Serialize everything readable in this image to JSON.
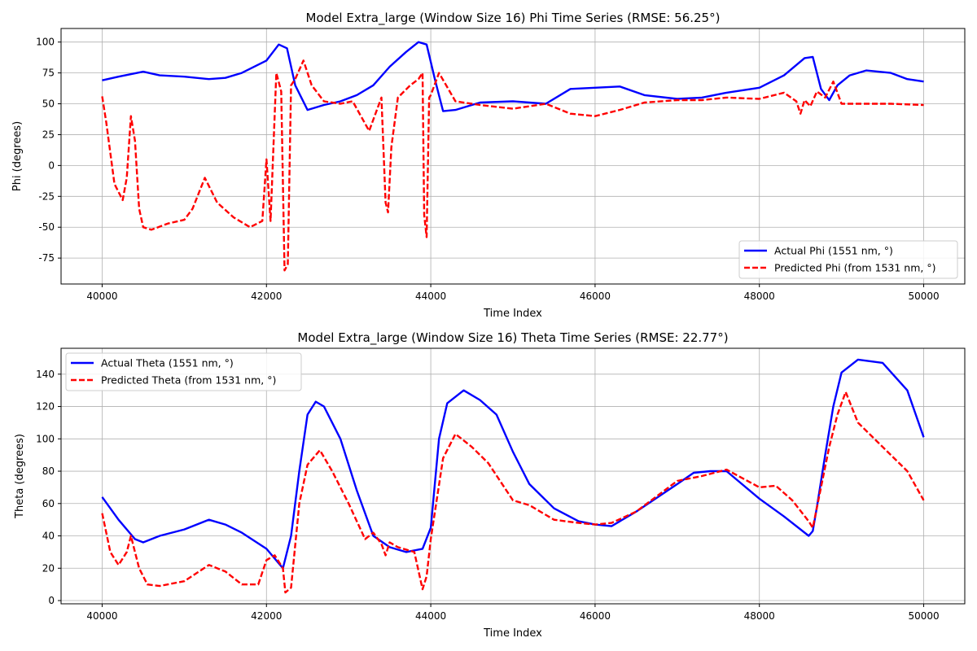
{
  "chart_data": [
    {
      "type": "line",
      "title": "Model Extra_large (Window Size 16) Phi Time Series (RMSE: 56.25°)",
      "xlabel": "Time Index",
      "ylabel": "Phi (degrees)",
      "xlim": [
        39500,
        50500
      ],
      "ylim": [
        -96,
        111
      ],
      "xticks": [
        40000,
        42000,
        44000,
        46000,
        48000,
        50000
      ],
      "yticks": [
        -75,
        -50,
        -25,
        0,
        25,
        50,
        75,
        100
      ],
      "grid": true,
      "legend_position": "lower-right",
      "series": [
        {
          "name": "Actual Phi (1551 nm, °)",
          "color": "#0000ff",
          "style": "solid",
          "x": [
            40000,
            40200,
            40500,
            40700,
            41000,
            41300,
            41500,
            41700,
            42000,
            42150,
            42250,
            42350,
            42500,
            42700,
            42900,
            43100,
            43300,
            43500,
            43700,
            43850,
            43950,
            44050,
            44150,
            44300,
            44600,
            45000,
            45400,
            45700,
            46000,
            46300,
            46600,
            47000,
            47300,
            47600,
            48000,
            48300,
            48550,
            48650,
            48750,
            48850,
            48950,
            49100,
            49300,
            49600,
            49800,
            50000
          ],
          "y": [
            69,
            72,
            76,
            73,
            72,
            70,
            71,
            75,
            85,
            98,
            95,
            65,
            45,
            49,
            52,
            57,
            65,
            80,
            92,
            100,
            98,
            70,
            44,
            45,
            51,
            52,
            50,
            62,
            63,
            64,
            57,
            54,
            55,
            59,
            63,
            73,
            87,
            88,
            62,
            53,
            65,
            73,
            77,
            75,
            70,
            68
          ]
        },
        {
          "name": "Predicted Phi (from 1531 nm, °)",
          "color": "#ff0000",
          "style": "dashed",
          "x": [
            40000,
            40050,
            40150,
            40250,
            40300,
            40350,
            40400,
            40450,
            40500,
            40600,
            40800,
            41000,
            41100,
            41250,
            41400,
            41600,
            41800,
            41950,
            42000,
            42050,
            42120,
            42180,
            42220,
            42260,
            42300,
            42350,
            42450,
            42550,
            42700,
            42900,
            43050,
            43250,
            43400,
            43450,
            43480,
            43520,
            43600,
            43750,
            43850,
            43900,
            43920,
            43950,
            43980,
            44000,
            44100,
            44300,
            44600,
            45000,
            45400,
            45700,
            46000,
            46300,
            46600,
            47000,
            47300,
            47600,
            48000,
            48300,
            48450,
            48500,
            48550,
            48620,
            48700,
            48800,
            48900,
            49000,
            49300,
            49600,
            50000
          ],
          "y": [
            56,
            35,
            -15,
            -28,
            -10,
            40,
            20,
            -35,
            -50,
            -52,
            -47,
            -44,
            -35,
            -10,
            -30,
            -42,
            -50,
            -45,
            5,
            -45,
            75,
            60,
            -85,
            -80,
            65,
            70,
            85,
            65,
            52,
            50,
            52,
            28,
            55,
            -30,
            -38,
            15,
            55,
            65,
            70,
            75,
            -40,
            -58,
            55,
            57,
            75,
            52,
            49,
            46,
            50,
            42,
            40,
            45,
            51,
            53,
            53,
            55,
            54,
            59,
            52,
            42,
            53,
            48,
            60,
            55,
            68,
            50,
            50,
            50,
            49
          ]
        }
      ]
    },
    {
      "type": "line",
      "title": "Model Extra_large (Window Size 16) Theta Time Series (RMSE: 22.77°)",
      "xlabel": "Time Index",
      "ylabel": "Theta (degrees)",
      "xlim": [
        39500,
        50500
      ],
      "ylim": [
        -2,
        156
      ],
      "xticks": [
        40000,
        42000,
        44000,
        46000,
        48000,
        50000
      ],
      "yticks": [
        0,
        20,
        40,
        60,
        80,
        100,
        120,
        140
      ],
      "grid": true,
      "legend_position": "upper-left",
      "series": [
        {
          "name": "Actual Theta (1551 nm, °)",
          "color": "#0000ff",
          "style": "solid",
          "x": [
            40000,
            40200,
            40400,
            40500,
            40700,
            41000,
            41300,
            41500,
            41700,
            42000,
            42200,
            42300,
            42400,
            42500,
            42600,
            42700,
            42900,
            43100,
            43300,
            43500,
            43700,
            43900,
            44000,
            44100,
            44200,
            44400,
            44600,
            44800,
            45000,
            45200,
            45500,
            45800,
            46000,
            46200,
            46500,
            47000,
            47200,
            47400,
            47600,
            48000,
            48300,
            48600,
            48650,
            48700,
            48800,
            48900,
            49000,
            49200,
            49500,
            49800,
            50000
          ],
          "y": [
            64,
            50,
            38,
            36,
            40,
            44,
            50,
            47,
            42,
            32,
            20,
            40,
            80,
            115,
            123,
            120,
            100,
            68,
            40,
            33,
            30,
            32,
            45,
            100,
            122,
            130,
            124,
            115,
            92,
            72,
            57,
            49,
            47,
            46,
            55,
            72,
            79,
            80,
            80,
            63,
            52,
            40,
            43,
            58,
            90,
            120,
            141,
            149,
            147,
            130,
            101
          ]
        },
        {
          "name": "Predicted Theta (from 1531 nm, °)",
          "color": "#ff0000",
          "style": "dashed",
          "x": [
            40000,
            40100,
            40200,
            40300,
            40350,
            40400,
            40450,
            40550,
            40700,
            41000,
            41300,
            41500,
            41700,
            41900,
            42000,
            42100,
            42200,
            42230,
            42300,
            42400,
            42500,
            42650,
            42800,
            43000,
            43200,
            43300,
            43400,
            43450,
            43500,
            43600,
            43800,
            43900,
            43950,
            44000,
            44150,
            44300,
            44500,
            44700,
            45000,
            45200,
            45500,
            45800,
            46000,
            46200,
            46500,
            47000,
            47300,
            47600,
            48000,
            48200,
            48400,
            48600,
            48650,
            48750,
            48850,
            48950,
            49050,
            49200,
            49500,
            49800,
            50000
          ],
          "y": [
            54,
            30,
            22,
            30,
            40,
            30,
            20,
            10,
            9,
            12,
            22,
            18,
            10,
            10,
            25,
            28,
            20,
            5,
            8,
            60,
            84,
            93,
            80,
            60,
            38,
            42,
            35,
            28,
            36,
            33,
            30,
            7,
            15,
            38,
            88,
            103,
            95,
            85,
            62,
            59,
            50,
            48,
            47,
            48,
            55,
            74,
            77,
            81,
            70,
            71,
            62,
            49,
            45,
            70,
            95,
            115,
            129,
            110,
            95,
            80,
            62
          ]
        }
      ]
    }
  ]
}
